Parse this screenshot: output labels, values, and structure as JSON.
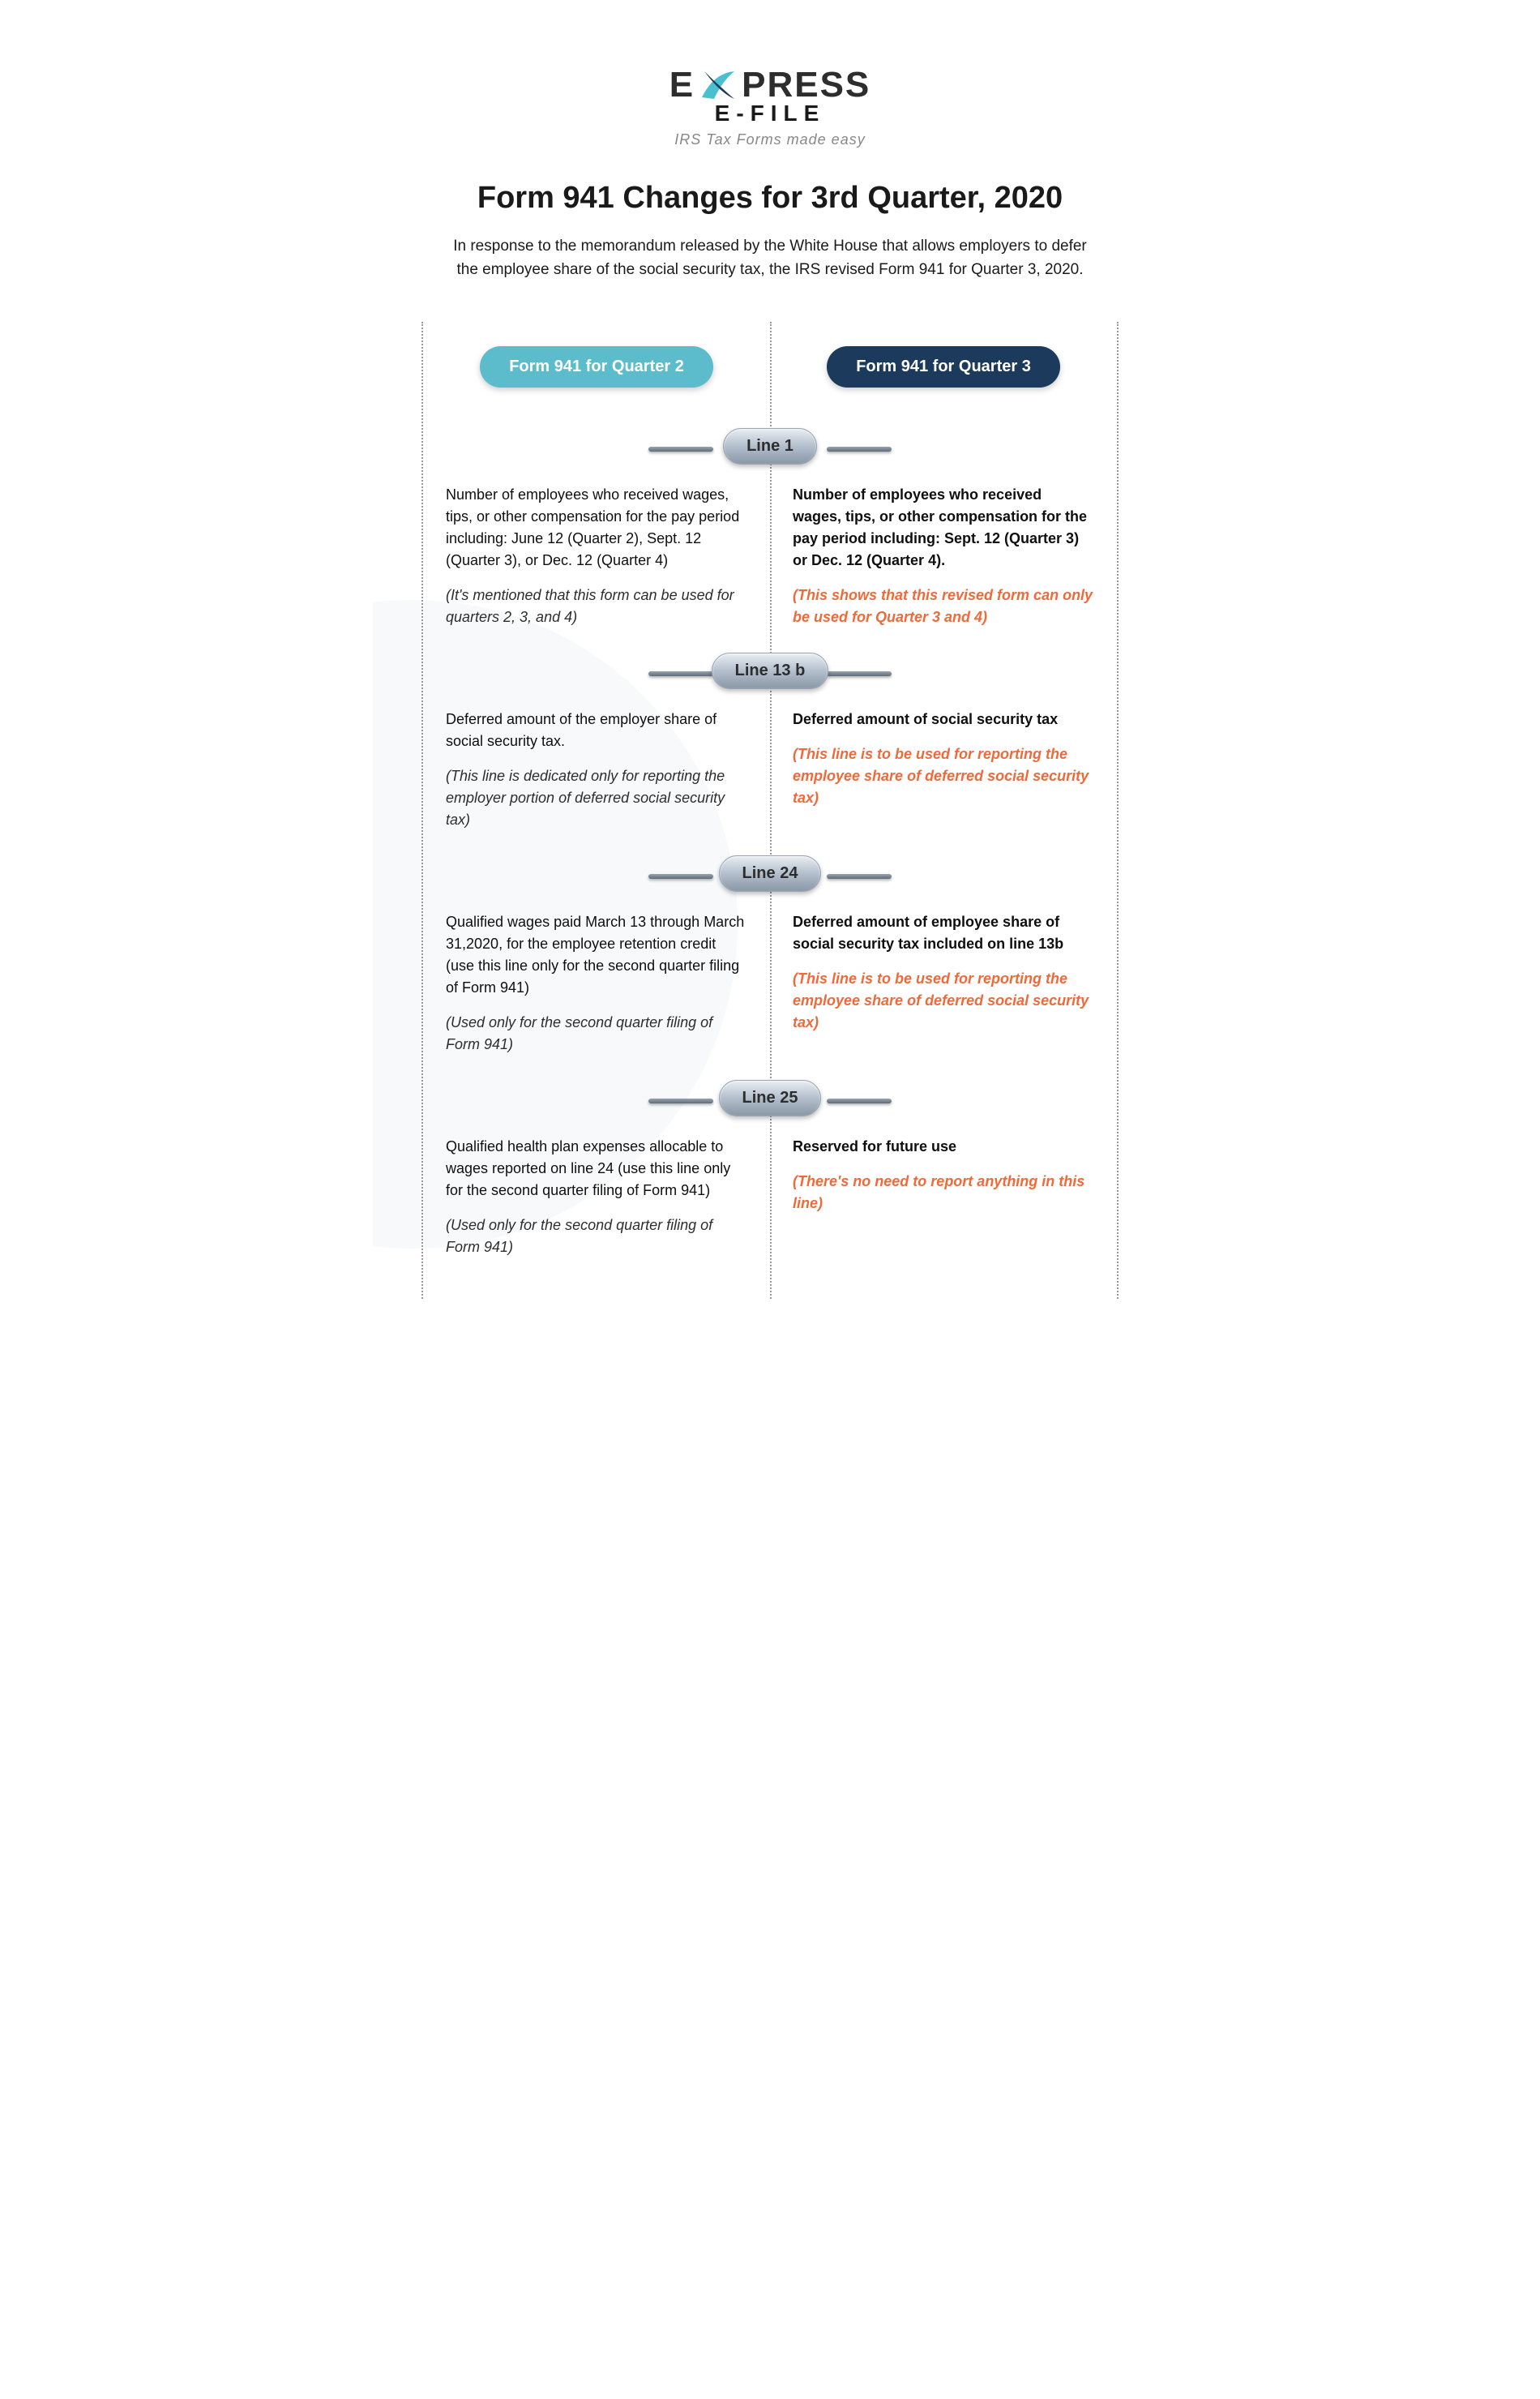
{
  "logo": {
    "top": "E PRESS",
    "sub": "E-FILE",
    "tagline": "IRS Tax Forms made easy",
    "mark_color_top": "#4abfd0",
    "mark_color_bottom": "#1c3a5c"
  },
  "title": "Form 941 Changes for 3rd Quarter, 2020",
  "intro": "In response to the memorandum released by the White House that allows employers to defer the employee share of the social security tax, the IRS revised Form 941 for Quarter 3, 2020.",
  "header_left": {
    "label": "Form 941 for Quarter 2",
    "bg": "#5dbccb"
  },
  "header_right": {
    "label": "Form 941 for Quarter 3",
    "bg": "#1c3a5c"
  },
  "colors": {
    "highlight_note": "#ef6a3a",
    "text": "#1a1a1a",
    "dotted_border": "#999999",
    "bg_blob": "#f2f5f8"
  },
  "lines": [
    {
      "label": "Line 1",
      "left_main": "Number of employees who received wages, tips, or other compensation for the pay period including: June 12 (Quarter 2), Sept. 12 (Quarter 3), or Dec. 12 (Quarter 4)",
      "left_note": "(It's mentioned that this form can be used for quarters 2, 3, and 4)",
      "right_main": "Number of employees who received wages, tips, or other compensation for the pay period including: Sept. 12 (Quarter 3) or Dec. 12 (Quarter 4).",
      "right_note": "(This shows that this revised form can only be used for Quarter 3 and 4)"
    },
    {
      "label": "Line 13 b",
      "left_main": "Deferred amount of the employer share of social security tax.",
      "left_note": "(This line is dedicated only for reporting the employer portion of deferred social security tax)",
      "right_main": "Deferred amount of social security tax",
      "right_note": "(This line is to be used for reporting the employee share of deferred social security tax)"
    },
    {
      "label": "Line 24",
      "left_main": "Qualified wages paid March 13 through March 31,2020, for the employee retention credit (use this line only for the second quarter filing of Form 941)",
      "left_note": "(Used only for the second quarter filing of Form 941)",
      "right_main": "Deferred amount of employee share of social security tax included on line 13b",
      "right_note": "(This line is to be used for reporting the employee share of deferred social security tax)"
    },
    {
      "label": "Line 25",
      "left_main": "Qualified health plan expenses allocable to wages reported on line 24 (use this line only for the second quarter filing of Form 941)",
      "left_note": "(Used only for the second quarter filing of Form 941)",
      "right_main": "Reserved for future use",
      "right_note": "(There's no need to report anything in this line)"
    }
  ]
}
